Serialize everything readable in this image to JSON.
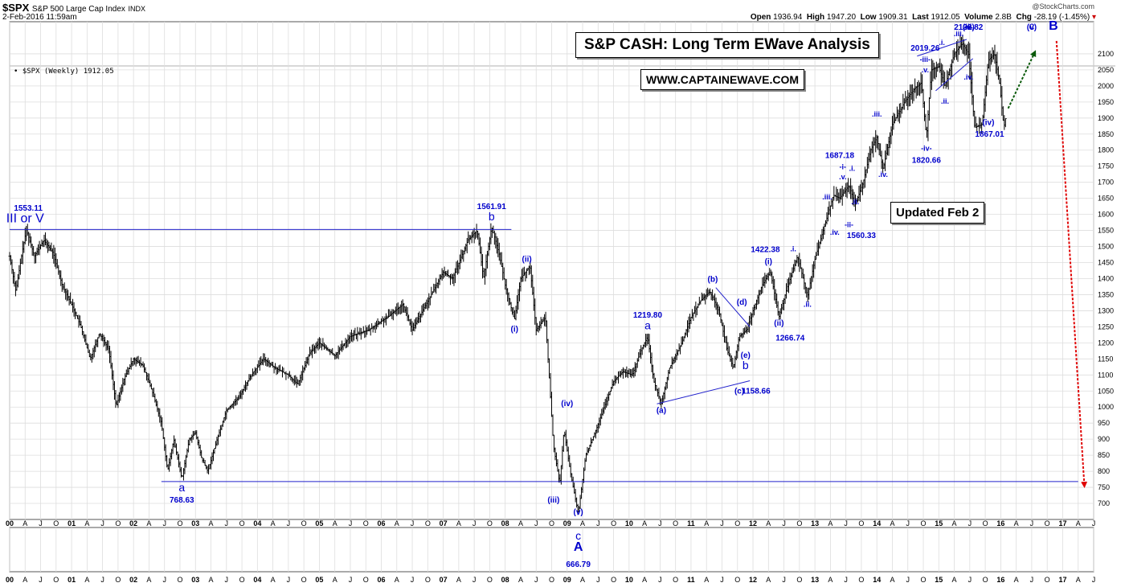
{
  "header": {
    "symbol": "$SPX",
    "name": "S&P 500 Large Cap Index",
    "exchange": "INDX",
    "datetime": "2-Feb-2016 11:59am",
    "source": "@StockCharts.com",
    "open_label": "Open",
    "open": "1936.94",
    "high_label": "High",
    "high": "1947.20",
    "low_label": "Low",
    "low": "1909.31",
    "last_label": "Last",
    "last": "1912.05",
    "volume_label": "Volume",
    "volume": "2.8B",
    "chg_label": "Chg",
    "chg": "-28.19 (-1.45%)"
  },
  "legend": "• $SPX (Weekly) 1912.05",
  "boxes": {
    "title": "S&P CASH: Long Term EWave Analysis",
    "url": "WWW.CAPTAINEWAVE.COM",
    "updated": "Updated Feb 2"
  },
  "chart_data": {
    "type": "bar",
    "period": "weekly OHLC",
    "x_range": [
      2000.0,
      2017.5
    ],
    "y_range": [
      650,
      2200
    ],
    "y_ticks": [
      700,
      750,
      800,
      850,
      900,
      950,
      1000,
      1050,
      1100,
      1150,
      1200,
      1250,
      1300,
      1350,
      1400,
      1450,
      1500,
      1550,
      1600,
      1650,
      1700,
      1750,
      1800,
      1850,
      1900,
      1950,
      2000,
      2050,
      2100
    ],
    "year_labels": [
      "00",
      "01",
      "02",
      "03",
      "04",
      "05",
      "06",
      "07",
      "08",
      "09",
      "10",
      "11",
      "12",
      "13",
      "14",
      "15",
      "16",
      "17"
    ],
    "month_labels": [
      "A",
      "J",
      "O"
    ],
    "price_path": [
      [
        2000.0,
        1470
      ],
      [
        2000.1,
        1360
      ],
      [
        2000.2,
        1480
      ],
      [
        2000.27,
        1553
      ],
      [
        2000.4,
        1470
      ],
      [
        2000.55,
        1520
      ],
      [
        2000.7,
        1480
      ],
      [
        2000.85,
        1380
      ],
      [
        2001.0,
        1320
      ],
      [
        2001.15,
        1250
      ],
      [
        2001.3,
        1150
      ],
      [
        2001.45,
        1230
      ],
      [
        2001.6,
        1180
      ],
      [
        2001.72,
        1000
      ],
      [
        2001.85,
        1090
      ],
      [
        2002.0,
        1150
      ],
      [
        2002.15,
        1130
      ],
      [
        2002.3,
        1050
      ],
      [
        2002.45,
        950
      ],
      [
        2002.55,
        800
      ],
      [
        2002.65,
        900
      ],
      [
        2002.78,
        776
      ],
      [
        2002.9,
        900
      ],
      [
        2003.0,
        920
      ],
      [
        2003.1,
        840
      ],
      [
        2003.2,
        800
      ],
      [
        2003.35,
        900
      ],
      [
        2003.5,
        990
      ],
      [
        2003.7,
        1030
      ],
      [
        2003.9,
        1100
      ],
      [
        2004.1,
        1150
      ],
      [
        2004.3,
        1120
      ],
      [
        2004.5,
        1100
      ],
      [
        2004.65,
        1070
      ],
      [
        2004.85,
        1170
      ],
      [
        2005.0,
        1200
      ],
      [
        2005.25,
        1160
      ],
      [
        2005.5,
        1220
      ],
      [
        2005.8,
        1240
      ],
      [
        2006.1,
        1280
      ],
      [
        2006.35,
        1320
      ],
      [
        2006.5,
        1240
      ],
      [
        2006.75,
        1330
      ],
      [
        2007.0,
        1420
      ],
      [
        2007.15,
        1400
      ],
      [
        2007.4,
        1520
      ],
      [
        2007.55,
        1550
      ],
      [
        2007.65,
        1400
      ],
      [
        2007.78,
        1561
      ],
      [
        2007.9,
        1480
      ],
      [
        2008.0,
        1380
      ],
      [
        2008.15,
        1270
      ],
      [
        2008.25,
        1400
      ],
      [
        2008.4,
        1440
      ],
      [
        2008.5,
        1240
      ],
      [
        2008.65,
        1280
      ],
      [
        2008.78,
        880
      ],
      [
        2008.88,
        760
      ],
      [
        2008.95,
        930
      ],
      [
        2009.05,
        800
      ],
      [
        2009.18,
        667
      ],
      [
        2009.3,
        850
      ],
      [
        2009.45,
        920
      ],
      [
        2009.6,
        1000
      ],
      [
        2009.75,
        1080
      ],
      [
        2009.9,
        1110
      ],
      [
        2010.05,
        1100
      ],
      [
        2010.2,
        1180
      ],
      [
        2010.3,
        1219
      ],
      [
        2010.4,
        1080
      ],
      [
        2010.52,
        1010
      ],
      [
        2010.65,
        1120
      ],
      [
        2010.85,
        1200
      ],
      [
        2011.0,
        1280
      ],
      [
        2011.15,
        1330
      ],
      [
        2011.3,
        1360
      ],
      [
        2011.45,
        1300
      ],
      [
        2011.58,
        1180
      ],
      [
        2011.68,
        1120
      ],
      [
        2011.78,
        1220
      ],
      [
        2011.9,
        1240
      ],
      [
        2012.0,
        1300
      ],
      [
        2012.15,
        1380
      ],
      [
        2012.28,
        1422
      ],
      [
        2012.42,
        1280
      ],
      [
        2012.55,
        1370
      ],
      [
        2012.72,
        1470
      ],
      [
        2012.88,
        1345
      ],
      [
        2013.0,
        1460
      ],
      [
        2013.15,
        1560
      ],
      [
        2013.3,
        1660
      ],
      [
        2013.4,
        1650
      ],
      [
        2013.55,
        1690
      ],
      [
        2013.65,
        1630
      ],
      [
        2013.78,
        1700
      ],
      [
        2013.9,
        1800
      ],
      [
        2014.0,
        1840
      ],
      [
        2014.1,
        1740
      ],
      [
        2014.25,
        1880
      ],
      [
        2014.45,
        1950
      ],
      [
        2014.6,
        1990
      ],
      [
        2014.72,
        2010
      ],
      [
        2014.8,
        1840
      ],
      [
        2014.88,
        2050
      ],
      [
        2015.0,
        2060
      ],
      [
        2015.1,
        2000
      ],
      [
        2015.25,
        2100
      ],
      [
        2015.38,
        2132
      ],
      [
        2015.48,
        2100
      ],
      [
        2015.58,
        1870
      ],
      [
        2015.7,
        1880
      ],
      [
        2015.8,
        2080
      ],
      [
        2015.9,
        2100
      ],
      [
        2015.98,
        2010
      ],
      [
        2016.05,
        1870
      ],
      [
        2016.09,
        1912
      ]
    ],
    "overlays": {
      "resistance_line": {
        "from": [
          2000.0,
          1553
        ],
        "to": [
          2008.1,
          1553
        ]
      },
      "support_line": {
        "from": [
          2002.45,
          768
        ],
        "to": [
          2017.25,
          768
        ]
      },
      "triangle_upper": {
        "from": [
          2011.4,
          1372
        ],
        "to": [
          2011.95,
          1250
        ]
      },
      "triangle_lower": {
        "from": [
          2010.45,
          1010
        ],
        "to": [
          2011.95,
          1082
        ]
      },
      "wedge_upper": {
        "from": [
          2014.65,
          2093
        ],
        "to": [
          2015.45,
          2145
        ]
      },
      "wedge_lower": {
        "from": [
          2014.95,
          1985
        ],
        "to": [
          2015.55,
          2085
        ]
      },
      "projection_up": {
        "from": [
          2016.12,
          1930
        ],
        "to": [
          2016.55,
          2105
        ]
      },
      "projection_down": {
        "from": [
          2016.9,
          2140
        ],
        "to": [
          2017.35,
          755
        ]
      }
    },
    "annotations": [
      {
        "text": "1553.11",
        "x": 2000.3,
        "y": 1612,
        "size": "s",
        "bold": true
      },
      {
        "text": "III or V",
        "x": 2000.25,
        "y": 1575,
        "size": "l",
        "bold": false
      },
      {
        "text": "a",
        "x": 2002.78,
        "y": 738,
        "size": "m",
        "bold": false
      },
      {
        "text": "768.63",
        "x": 2002.78,
        "y": 703,
        "size": "s",
        "bold": true
      },
      {
        "text": "1561.91",
        "x": 2007.78,
        "y": 1617,
        "size": "s",
        "bold": true
      },
      {
        "text": "b",
        "x": 2007.78,
        "y": 1582,
        "size": "m",
        "bold": false
      },
      {
        "text": "(i)",
        "x": 2008.15,
        "y": 1235,
        "size": "s",
        "bold": true
      },
      {
        "text": "(ii)",
        "x": 2008.35,
        "y": 1453,
        "size": "s",
        "bold": true
      },
      {
        "text": "(iii)",
        "x": 2008.78,
        "y": 702,
        "size": "s",
        "bold": true
      },
      {
        "text": "(iv)",
        "x": 2009.0,
        "y": 1003,
        "size": "s",
        "bold": true
      },
      {
        "text": "(v)",
        "x": 2009.18,
        "y": 665,
        "size": "s",
        "bold": true
      },
      {
        "text": "1219.80",
        "x": 2010.3,
        "y": 1278,
        "size": "s",
        "bold": true
      },
      {
        "text": "a",
        "x": 2010.3,
        "y": 1242,
        "size": "m",
        "bold": false
      },
      {
        "text": "(a)",
        "x": 2010.52,
        "y": 982,
        "size": "s",
        "bold": true
      },
      {
        "text": "(b)",
        "x": 2011.35,
        "y": 1390,
        "size": "s",
        "bold": true
      },
      {
        "text": "(d)",
        "x": 2011.82,
        "y": 1318,
        "size": "s",
        "bold": true
      },
      {
        "text": "(e)",
        "x": 2011.88,
        "y": 1153,
        "size": "s",
        "bold": true
      },
      {
        "text": "b",
        "x": 2011.88,
        "y": 1118,
        "size": "m",
        "bold": false
      },
      {
        "text": "(c)",
        "x": 2011.78,
        "y": 1042,
        "size": "s",
        "bold": true
      },
      {
        "text": "1158.66",
        "x": 2012.05,
        "y": 1042,
        "size": "s",
        "bold": true
      },
      {
        "text": "1422.38",
        "x": 2012.2,
        "y": 1482,
        "size": "s",
        "bold": true
      },
      {
        "text": "(i)",
        "x": 2012.25,
        "y": 1445,
        "size": "s",
        "bold": true
      },
      {
        "text": "(ii)",
        "x": 2012.42,
        "y": 1253,
        "size": "s",
        "bold": true
      },
      {
        "text": "1266.74",
        "x": 2012.6,
        "y": 1207,
        "size": "s",
        "bold": true
      },
      {
        "text": ".i.",
        "x": 2012.65,
        "y": 1485,
        "size": "xs",
        "bold": true
      },
      {
        "text": ".ii.",
        "x": 2012.88,
        "y": 1312,
        "size": "xs",
        "bold": true
      },
      {
        "text": ".iii.",
        "x": 2013.2,
        "y": 1647,
        "size": "xs",
        "bold": true
      },
      {
        "text": ".iv.",
        "x": 2013.32,
        "y": 1537,
        "size": "xs",
        "bold": true
      },
      {
        "text": "1687.18",
        "x": 2013.4,
        "y": 1775,
        "size": "s",
        "bold": true
      },
      {
        "text": "-i-",
        "x": 2013.45,
        "y": 1741,
        "size": "xs",
        "bold": true
      },
      {
        "text": ".v.",
        "x": 2013.45,
        "y": 1709,
        "size": "xs",
        "bold": true
      },
      {
        "text": ".i.",
        "x": 2013.6,
        "y": 1735,
        "size": "xs",
        "bold": true
      },
      {
        "text": ".ii.",
        "x": 2013.65,
        "y": 1632,
        "size": "xs",
        "bold": true
      },
      {
        "text": "-ii-",
        "x": 2013.55,
        "y": 1560,
        "size": "xs",
        "bold": true
      },
      {
        "text": "1560.33",
        "x": 2013.75,
        "y": 1527,
        "size": "s",
        "bold": true
      },
      {
        "text": ".iii.",
        "x": 2014.0,
        "y": 1905,
        "size": "xs",
        "bold": true
      },
      {
        "text": ".iv.",
        "x": 2014.1,
        "y": 1717,
        "size": "xs",
        "bold": true
      },
      {
        "text": "-iv-",
        "x": 2014.8,
        "y": 1798,
        "size": "xs",
        "bold": true
      },
      {
        "text": "1820.66",
        "x": 2014.8,
        "y": 1760,
        "size": "s",
        "bold": true
      },
      {
        "text": "2019.26",
        "x": 2014.78,
        "y": 2110,
        "size": "s",
        "bold": true
      },
      {
        "text": ".i.",
        "x": 2015.05,
        "y": 2128,
        "size": "xs",
        "bold": true
      },
      {
        "text": "-iii-",
        "x": 2014.78,
        "y": 2075,
        "size": "xs",
        "bold": true
      },
      {
        "text": ".v.",
        "x": 2014.78,
        "y": 2042,
        "size": "xs",
        "bold": true
      },
      {
        "text": ".ii.",
        "x": 2015.1,
        "y": 1945,
        "size": "xs",
        "bold": true
      },
      {
        "text": ".iii.",
        "x": 2015.32,
        "y": 2155,
        "size": "xs",
        "bold": true
      },
      {
        "text": "-v-",
        "x": 2015.48,
        "y": 2217,
        "size": "xs",
        "bold": true
      },
      {
        "text": ".v.",
        "x": 2015.48,
        "y": 2183,
        "size": "xs",
        "bold": true
      },
      {
        "text": ".iv.",
        "x": 2015.48,
        "y": 2020,
        "size": "xs",
        "bold": true
      },
      {
        "text": "(iii)",
        "x": 2015.48,
        "y": 2252,
        "size": "s",
        "bold": true
      },
      {
        "text": "2132.82",
        "x": 2015.48,
        "y": 2285,
        "size": "s",
        "bold": true
      },
      {
        "text": "(iv)",
        "x": 2015.8,
        "y": 1878,
        "size": "s",
        "bold": true
      },
      {
        "text": "1867.01",
        "x": 2015.82,
        "y": 1842,
        "size": "s",
        "bold": true
      },
      {
        "text": "(v)",
        "x": 2016.5,
        "y": 2175,
        "size": "s",
        "bold": true
      },
      {
        "text": "c",
        "x": 2016.5,
        "y": 2230,
        "size": "m",
        "bold": false
      },
      {
        "text": "B",
        "x": 2016.85,
        "y": 2270,
        "size": "l",
        "bold": true
      }
    ],
    "lower_panel_annotations": [
      {
        "text": "c",
        "x": 2009.18,
        "pos": 0.16,
        "size": "m",
        "bold": false
      },
      {
        "text": "A",
        "x": 2009.18,
        "pos": 0.42,
        "size": "l",
        "bold": true
      },
      {
        "text": "666.79",
        "x": 2009.18,
        "pos": 0.78,
        "size": "s",
        "bold": true
      }
    ]
  }
}
